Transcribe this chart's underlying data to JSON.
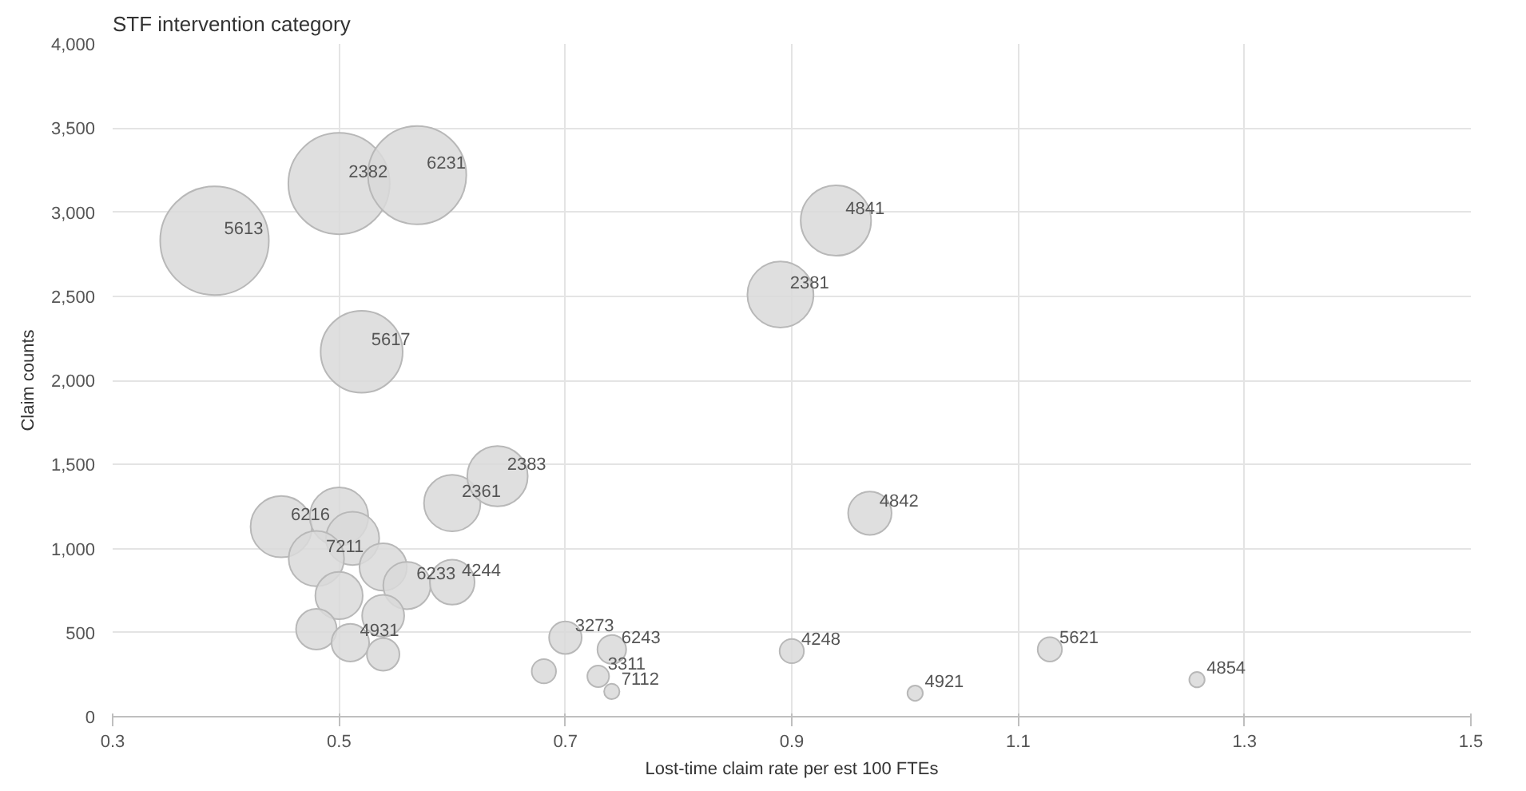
{
  "chart_data": {
    "type": "bubble",
    "title": "STF intervention category",
    "xlabel": "Lost-time claim rate per est 100 FTEs",
    "ylabel": "Claim counts",
    "xlim": [
      0.3,
      1.5
    ],
    "xticks": [
      0.3,
      0.5,
      0.7,
      0.9,
      1.1,
      1.3,
      1.5
    ],
    "ylim": [
      0,
      4000
    ],
    "yticks": [
      0,
      500,
      {
        "value": 1000,
        "label": "1,000"
      },
      {
        "value": 1500,
        "label": "1,500"
      },
      {
        "value": 2000,
        "label": "2,000"
      },
      {
        "value": 2500,
        "label": "2,500"
      },
      {
        "value": 3000,
        "label": "3,000"
      },
      {
        "value": 3500,
        "label": "3,500"
      },
      {
        "value": 4000,
        "label": "4,000"
      }
    ],
    "grid": true,
    "series": [
      {
        "color": "#d9d9d9",
        "x": [
          0.39,
          0.5,
          0.569,
          0.52,
          0.449,
          0.5,
          0.512,
          0.48,
          0.539,
          0.56,
          0.5,
          0.6,
          0.64,
          0.6,
          0.539,
          0.48,
          0.51,
          0.539,
          0.7,
          0.681,
          0.741,
          0.729,
          0.741,
          0.939,
          0.89,
          0.969,
          0.9,
          1.009,
          1.128,
          1.258
        ],
        "values": [
          2830,
          3170,
          3220,
          2170,
          1130,
          1190,
          1060,
          940,
          890,
          780,
          720,
          1270,
          1430,
          800,
          600,
          520,
          440,
          370,
          470,
          270,
          400,
          240,
          150,
          2950,
          2510,
          1210,
          390,
          140,
          400,
          220
        ],
        "sizes": [
          1,
          0.87,
          0.82,
          0.57,
          0.32,
          0.29,
          0.24,
          0.26,
          0.19,
          0.19,
          0.19,
          0.27,
          0.31,
          0.17,
          0.15,
          0.14,
          0.12,
          0.09,
          0.09,
          0.05,
          0.07,
          0.04,
          0.02,
          0.42,
          0.37,
          0.16,
          0.05,
          0.02,
          0.05,
          0.02
        ]
      }
    ],
    "annotations": [
      {
        "text": "5613",
        "x": 0.39,
        "y": 2830
      },
      {
        "text": "2382",
        "x": 0.5,
        "y": 3170
      },
      {
        "text": "6231",
        "x": 0.569,
        "y": 3220
      },
      {
        "text": "5617",
        "x": 0.52,
        "y": 2170
      },
      {
        "text": "6216",
        "x": 0.449,
        "y": 1130
      },
      {
        "text": "7211",
        "x": 0.48,
        "y": 940
      },
      {
        "text": "6233",
        "x": 0.56,
        "y": 780
      },
      {
        "text": "2361",
        "x": 0.6,
        "y": 1270
      },
      {
        "text": "2383",
        "x": 0.64,
        "y": 1430
      },
      {
        "text": "4244",
        "x": 0.6,
        "y": 800
      },
      {
        "text": "4931",
        "x": 0.51,
        "y": 440
      },
      {
        "text": "3273",
        "x": 0.7,
        "y": 470
      },
      {
        "text": "6243",
        "x": 0.741,
        "y": 400
      },
      {
        "text": "3311",
        "x": 0.729,
        "y": 240
      },
      {
        "text": "7112",
        "x": 0.741,
        "y": 150
      },
      {
        "text": "4841",
        "x": 0.939,
        "y": 2950
      },
      {
        "text": "2381",
        "x": 0.89,
        "y": 2510
      },
      {
        "text": "4842",
        "x": 0.969,
        "y": 1210
      },
      {
        "text": "4248",
        "x": 0.9,
        "y": 390
      },
      {
        "text": "4921",
        "x": 1.009,
        "y": 140
      },
      {
        "text": "5621",
        "x": 1.128,
        "y": 400
      },
      {
        "text": "4854",
        "x": 1.258,
        "y": 220
      }
    ]
  }
}
